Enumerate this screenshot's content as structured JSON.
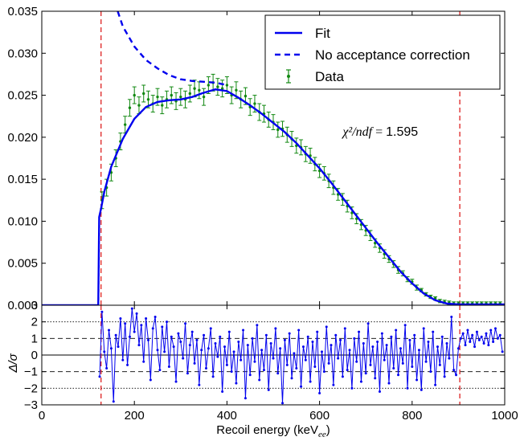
{
  "chart_data": [
    {
      "type": "scatter",
      "panel": "top",
      "xlabel": "",
      "ylabel": "",
      "xlim": [
        0,
        1000
      ],
      "ylim": [
        0,
        0.035
      ],
      "yticks": [
        "0.000",
        "0.005",
        "0.010",
        "0.015",
        "0.020",
        "0.025",
        "0.030",
        "0.035"
      ],
      "vlines": [
        128,
        903
      ],
      "annotation": {
        "lhs": "χ²/ndf",
        "eq": " = ",
        "value": "1.595",
        "x": 650,
        "y": 0.0202
      },
      "legend_position": "top-right",
      "legend": [
        "Fit",
        "No acceptance correction",
        "Data"
      ],
      "series": [
        {
          "name": "Fit",
          "style": "solid",
          "x": [
            0,
            122,
            124,
            128,
            135,
            150,
            175,
            200,
            225,
            250,
            275,
            300,
            325,
            350,
            375,
            400,
            425,
            450,
            475,
            500,
            525,
            550,
            575,
            600,
            625,
            650,
            675,
            700,
            725,
            750,
            775,
            800,
            825,
            850,
            875,
            900,
            925,
            950,
            1000
          ],
          "y": [
            0,
            0,
            0.0105,
            0.0115,
            0.0135,
            0.0165,
            0.0198,
            0.0222,
            0.0236,
            0.0242,
            0.0244,
            0.0245,
            0.0248,
            0.0253,
            0.0257,
            0.0255,
            0.0247,
            0.0238,
            0.0228,
            0.0217,
            0.0206,
            0.0193,
            0.0178,
            0.0163,
            0.0146,
            0.0128,
            0.011,
            0.0092,
            0.0074,
            0.0057,
            0.004,
            0.0026,
            0.0014,
            0.0006,
            0.0002,
            0.0001,
            0.0001,
            0.0001,
            0.0001
          ]
        },
        {
          "name": "No acceptance correction",
          "style": "dashed",
          "x": [
            164,
            175,
            200,
            225,
            250,
            275,
            300,
            325,
            350,
            375,
            400
          ],
          "y": [
            0.035,
            0.0332,
            0.0308,
            0.0292,
            0.0282,
            0.0274,
            0.0269,
            0.0267,
            0.0266,
            0.0265,
            0.0262
          ]
        },
        {
          "name": "Data",
          "style": "points-with-errorbars",
          "x": [
            130,
            140,
            150,
            160,
            170,
            180,
            190,
            200,
            210,
            220,
            230,
            240,
            250,
            260,
            270,
            280,
            290,
            300,
            310,
            320,
            330,
            340,
            350,
            360,
            370,
            380,
            390,
            400,
            410,
            420,
            430,
            440,
            450,
            460,
            470,
            480,
            490,
            500,
            510,
            520,
            530,
            540,
            550,
            560,
            570,
            580,
            590,
            600,
            610,
            620,
            630,
            640,
            650,
            660,
            670,
            680,
            690,
            700,
            710,
            720,
            730,
            740,
            750,
            760,
            770,
            780,
            790,
            800,
            810,
            820,
            830,
            840,
            850,
            860,
            870,
            880,
            890,
            900,
            910,
            920,
            930,
            940,
            950,
            960,
            970,
            980,
            990
          ],
          "y": [
            0.0125,
            0.014,
            0.0158,
            0.0175,
            0.0195,
            0.0215,
            0.0235,
            0.025,
            0.0238,
            0.0252,
            0.0245,
            0.024,
            0.0248,
            0.0238,
            0.0245,
            0.025,
            0.0243,
            0.0248,
            0.0245,
            0.0252,
            0.0258,
            0.0256,
            0.0248,
            0.0262,
            0.0265,
            0.026,
            0.0258,
            0.0262,
            0.025,
            0.0256,
            0.0245,
            0.0249,
            0.0236,
            0.024,
            0.023,
            0.0228,
            0.0221,
            0.0218,
            0.0209,
            0.021,
            0.0203,
            0.0198,
            0.019,
            0.0188,
            0.018,
            0.0178,
            0.0168,
            0.016,
            0.0157,
            0.0148,
            0.014,
            0.0132,
            0.0126,
            0.0118,
            0.011,
            0.0103,
            0.0096,
            0.0089,
            0.0083,
            0.0074,
            0.0068,
            0.0061,
            0.0055,
            0.0049,
            0.0042,
            0.0038,
            0.0031,
            0.0028,
            0.0021,
            0.0018,
            0.0013,
            0.001,
            0.0008,
            0.0005,
            0.0004,
            0.0003,
            0.0002,
            0.0002,
            0.0002,
            0.0002,
            0.0002,
            0.0002,
            0.0002,
            0.0002,
            0.0002,
            0.0002,
            0.0002
          ],
          "err": [
            0.001,
            0.001,
            0.001,
            0.001,
            0.001,
            0.001,
            0.001,
            0.001,
            0.001,
            0.001,
            0.001,
            0.001,
            0.001,
            0.001,
            0.001,
            0.001,
            0.001,
            0.001,
            0.001,
            0.001,
            0.001,
            0.001,
            0.001,
            0.001,
            0.001,
            0.001,
            0.001,
            0.001,
            0.001,
            0.001,
            0.001,
            0.001,
            0.001,
            0.001,
            0.001,
            0.001,
            0.0009,
            0.0009,
            0.0009,
            0.0009,
            0.0009,
            0.0009,
            0.0009,
            0.0009,
            0.0009,
            0.0009,
            0.0008,
            0.0008,
            0.0008,
            0.0008,
            0.0008,
            0.0007,
            0.0007,
            0.0007,
            0.0007,
            0.0006,
            0.0006,
            0.0006,
            0.0006,
            0.0005,
            0.0005,
            0.0005,
            0.0004,
            0.0004,
            0.0004,
            0.0003,
            0.0003,
            0.0003,
            0.0003,
            0.0002,
            0.0002,
            0.0002,
            0.0002,
            0.0002,
            0.0002,
            0.0002,
            0.0002,
            0.0002,
            0.0002,
            0.0002,
            0.0002,
            0.0002,
            0.0002,
            0.0002,
            0.0002,
            0.0002,
            0.0002
          ]
        }
      ],
      "colors": {
        "fit": "#0000ee",
        "data": "#118811",
        "vline": "#dd2222"
      }
    },
    {
      "type": "line",
      "panel": "bottom",
      "xlabel": "Recoil energy (keV",
      "xlabel_sub": "ee",
      "xlabel_close": ")",
      "ylabel": "Δ/σ",
      "xlim": [
        0,
        1000
      ],
      "ylim": [
        -3,
        3
      ],
      "xticks": [
        "0",
        "200",
        "400",
        "600",
        "800",
        "1000"
      ],
      "yticks": [
        "−3",
        "−2",
        "−1",
        "0",
        "1",
        "2",
        "3"
      ],
      "hlines_dotted": [
        -2,
        2
      ],
      "hlines_dashed": [
        -1,
        1
      ],
      "hline_solid": 0,
      "vlines": [
        128,
        903
      ],
      "series": [
        {
          "name": "",
          "x": [
            125,
            130,
            135,
            140,
            145,
            150,
            155,
            160,
            165,
            170,
            175,
            180,
            185,
            190,
            195,
            200,
            205,
            210,
            215,
            220,
            225,
            230,
            235,
            240,
            245,
            250,
            255,
            260,
            265,
            270,
            275,
            280,
            285,
            290,
            295,
            300,
            305,
            310,
            315,
            320,
            325,
            330,
            335,
            340,
            345,
            350,
            355,
            360,
            365,
            370,
            375,
            380,
            385,
            390,
            395,
            400,
            405,
            410,
            415,
            420,
            425,
            430,
            435,
            440,
            445,
            450,
            455,
            460,
            465,
            470,
            475,
            480,
            485,
            490,
            495,
            500,
            505,
            510,
            515,
            520,
            525,
            530,
            535,
            540,
            545,
            550,
            555,
            560,
            565,
            570,
            575,
            580,
            585,
            590,
            595,
            600,
            605,
            610,
            615,
            620,
            625,
            630,
            635,
            640,
            645,
            650,
            655,
            660,
            665,
            670,
            675,
            680,
            685,
            690,
            695,
            700,
            705,
            710,
            715,
            720,
            725,
            730,
            735,
            740,
            745,
            750,
            755,
            760,
            765,
            770,
            775,
            780,
            785,
            790,
            795,
            800,
            805,
            810,
            815,
            820,
            825,
            830,
            835,
            840,
            845,
            850,
            855,
            860,
            865,
            870,
            875,
            880,
            885,
            890,
            895,
            900,
            905,
            910,
            915,
            920,
            925,
            930,
            935,
            940,
            945,
            950,
            955,
            960,
            965,
            970,
            975,
            980,
            985,
            990,
            995
          ],
          "y": [
            -1.3,
            2.6,
            0.2,
            -0.8,
            1.5,
            0.4,
            -2.8,
            1.2,
            0.5,
            2.2,
            -0.3,
            1.9,
            -0.6,
            1.1,
            2.8,
            1.4,
            2.5,
            0.6,
            1.8,
            -0.4,
            2.2,
            0.9,
            -1.5,
            1.6,
            2.3,
            0.3,
            -0.9,
            1.7,
            0.2,
            2.0,
            -0.7,
            1.1,
            0.5,
            -1.6,
            1.3,
            0.8,
            -0.2,
            1.9,
            -1.1,
            0.6,
            1.4,
            -0.5,
            0.9,
            -1.8,
            0.3,
            1.2,
            -0.8,
            0.4,
            1.6,
            -1.3,
            0.7,
            -0.1,
            1.1,
            -2.2,
            0.5,
            -0.6,
            1.4,
            -1.0,
            0.2,
            -1.7,
            0.8,
            -0.3,
            1.5,
            -2.6,
            0.6,
            -1.2,
            1.0,
            -0.4,
            1.8,
            -1.5,
            0.3,
            -0.9,
            1.2,
            -2.1,
            0.7,
            -0.2,
            1.6,
            -1.1,
            0.4,
            -2.9,
            0.9,
            -0.6,
            1.3,
            -1.4,
            0.1,
            -0.8,
            1.5,
            -1.9,
            0.5,
            -0.3,
            1.1,
            -1.6,
            0.8,
            -0.7,
            1.4,
            -2.3,
            0.2,
            -1.0,
            1.7,
            -0.5,
            0.6,
            -1.8,
            1.2,
            -0.2,
            0.9,
            -1.3,
            1.6,
            -0.9,
            0.3,
            -2.0,
            1.0,
            -0.4,
            1.4,
            -1.6,
            0.7,
            -1.1,
            1.9,
            -0.6,
            0.5,
            -1.4,
            0.8,
            -2.2,
            1.3,
            -0.3,
            0.6,
            -1.7,
            1.1,
            -0.8,
            1.5,
            -1.2,
            0.4,
            -0.5,
            1.8,
            -2.0,
            0.9,
            -0.7,
            1.2,
            -1.5,
            0.3,
            -2.1,
            1.6,
            -0.4,
            0.8,
            -1.0,
            1.4,
            -1.8,
            0.5,
            -0.6,
            1.1,
            -1.3,
            0.7,
            -0.2,
            2.3,
            -0.9,
            -1.2,
            0.4,
            1.0,
            1.3,
            0.6,
            1.5,
            0.8,
            1.2,
            0.5,
            1.4,
            0.9,
            1.1,
            0.7,
            1.3,
            0.6,
            1.5,
            0.8,
            1.6,
            1.0,
            1.2,
            0.2
          ]
        }
      ],
      "colors": {
        "residual": "#0000ee"
      }
    }
  ]
}
